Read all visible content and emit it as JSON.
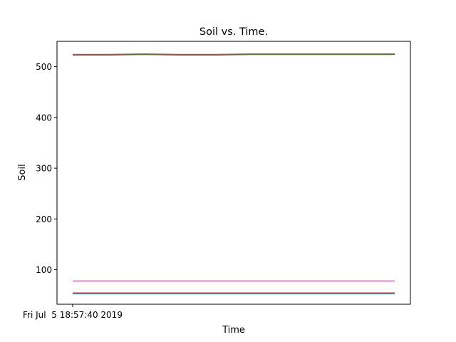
{
  "chart_data": {
    "type": "line",
    "title": "Soil vs. Time.",
    "xlabel": "Time",
    "ylabel": "Soil",
    "x_tick_labels": [
      "Fri Jul  5 18:57:40 2019"
    ],
    "y_ticks": [
      100,
      200,
      300,
      400,
      500
    ],
    "ylim": [
      32,
      550
    ],
    "grid": false,
    "series": [
      {
        "color": "#2ca02c",
        "values": [
          523,
          523,
          524,
          523,
          523,
          524,
          524,
          524,
          524,
          524
        ]
      },
      {
        "color": "#8c564b",
        "values": [
          524,
          524,
          525,
          524,
          524,
          525,
          525,
          525,
          525,
          525
        ]
      },
      {
        "color": "#9467bd",
        "values": [
          78,
          78,
          78,
          78,
          78,
          78,
          78,
          78,
          78,
          78
        ]
      },
      {
        "color": "#e377c2",
        "values": [
          78,
          78,
          78,
          78,
          78,
          78,
          78,
          78,
          78,
          78
        ]
      },
      {
        "color": "#d62728",
        "values": [
          54,
          54,
          54,
          54,
          54,
          54,
          54,
          54,
          54,
          54
        ]
      },
      {
        "color": "#1f77b4",
        "values": [
          53,
          53,
          53,
          53,
          53,
          53,
          53,
          53,
          53,
          53
        ]
      }
    ]
  }
}
